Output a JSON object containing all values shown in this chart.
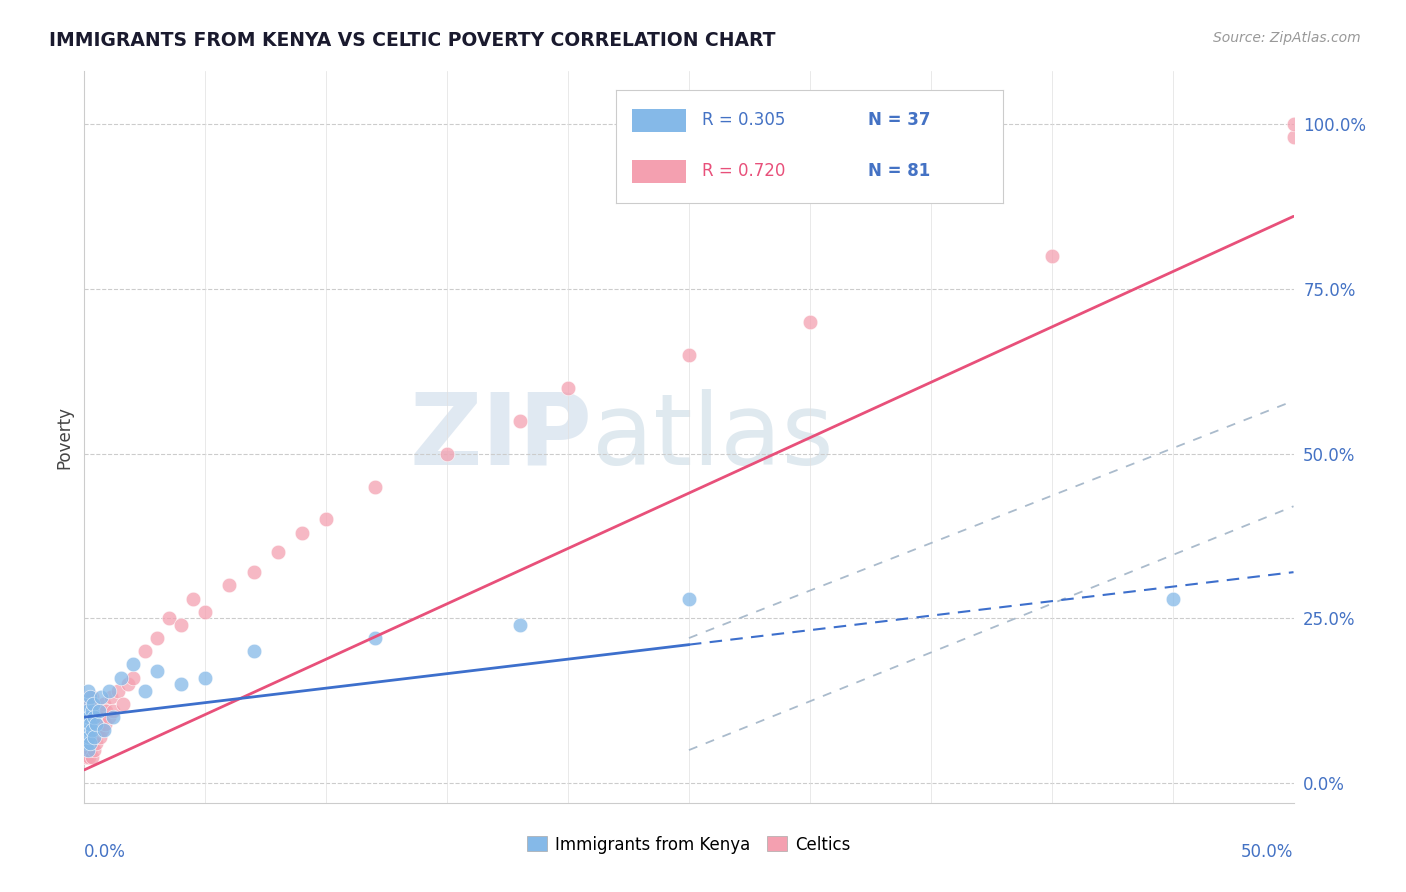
{
  "title": "IMMIGRANTS FROM KENYA VS CELTIC POVERTY CORRELATION CHART",
  "source": "Source: ZipAtlas.com",
  "ylabel": "Poverty",
  "ytick_values": [
    0,
    25,
    50,
    75,
    100
  ],
  "xlim": [
    0,
    50
  ],
  "ylim": [
    -3,
    108
  ],
  "blue_color": "#85b9e8",
  "pink_color": "#f4a0b0",
  "blue_line_color": "#3d6fcc",
  "pink_line_color": "#e8507a",
  "dash_color": "#aabbcc",
  "blue_label": "Immigrants from Kenya",
  "pink_label": "Celtics",
  "R_blue": 0.305,
  "N_blue": 37,
  "R_pink": 0.72,
  "N_pink": 81,
  "watermark_zip": "ZIP",
  "watermark_atlas": "atlas",
  "background_color": "#ffffff",
  "legend_text_color": "#4472c4",
  "blue_scatter_x": [
    0.05,
    0.05,
    0.08,
    0.1,
    0.1,
    0.12,
    0.12,
    0.15,
    0.15,
    0.18,
    0.2,
    0.2,
    0.22,
    0.25,
    0.25,
    0.3,
    0.3,
    0.35,
    0.4,
    0.4,
    0.5,
    0.6,
    0.7,
    0.8,
    1.0,
    1.2,
    1.5,
    2.0,
    2.5,
    3.0,
    4.0,
    5.0,
    7.0,
    12.0,
    18.0,
    25.0,
    45.0
  ],
  "blue_scatter_y": [
    10,
    7,
    9,
    8,
    12,
    6,
    11,
    5,
    14,
    8,
    10,
    7,
    13,
    9,
    6,
    11,
    8,
    12,
    10,
    7,
    9,
    11,
    13,
    8,
    14,
    10,
    16,
    18,
    14,
    17,
    15,
    16,
    20,
    22,
    24,
    28,
    28
  ],
  "pink_scatter_x": [
    0.02,
    0.03,
    0.04,
    0.05,
    0.05,
    0.06,
    0.07,
    0.08,
    0.08,
    0.09,
    0.1,
    0.1,
    0.11,
    0.12,
    0.12,
    0.13,
    0.14,
    0.15,
    0.15,
    0.16,
    0.17,
    0.18,
    0.18,
    0.19,
    0.2,
    0.2,
    0.22,
    0.23,
    0.24,
    0.25,
    0.25,
    0.27,
    0.28,
    0.3,
    0.3,
    0.32,
    0.35,
    0.36,
    0.38,
    0.4,
    0.4,
    0.42,
    0.45,
    0.48,
    0.5,
    0.52,
    0.55,
    0.6,
    0.65,
    0.7,
    0.75,
    0.8,
    0.85,
    0.9,
    1.0,
    1.1,
    1.2,
    1.4,
    1.6,
    1.8,
    2.0,
    2.5,
    3.0,
    3.5,
    4.0,
    4.5,
    5.0,
    6.0,
    7.0,
    8.0,
    9.0,
    10.0,
    12.0,
    15.0,
    18.0,
    20.0,
    25.0,
    30.0,
    40.0,
    50.0,
    50.0
  ],
  "pink_scatter_y": [
    5,
    8,
    6,
    4,
    10,
    7,
    9,
    5,
    12,
    8,
    6,
    11,
    7,
    9,
    4,
    10,
    8,
    5,
    13,
    7,
    9,
    6,
    11,
    8,
    4,
    12,
    7,
    10,
    6,
    9,
    5,
    11,
    8,
    4,
    13,
    7,
    9,
    6,
    10,
    5,
    12,
    8,
    7,
    10,
    6,
    9,
    8,
    11,
    7,
    10,
    8,
    12,
    9,
    11,
    10,
    13,
    11,
    14,
    12,
    15,
    16,
    20,
    22,
    25,
    24,
    28,
    26,
    30,
    32,
    35,
    38,
    40,
    45,
    50,
    55,
    60,
    65,
    70,
    80,
    98,
    100
  ],
  "blue_line_x0": 0,
  "blue_line_y0": 10,
  "blue_line_x1": 50,
  "blue_line_y1": 32,
  "blue_solid_end_x": 25,
  "pink_line_x0": 0,
  "pink_line_y0": 2,
  "pink_line_x1": 50,
  "pink_line_y1": 86,
  "dash_upper_y0": 22,
  "dash_upper_y1": 58,
  "dash_lower_y0": 5,
  "dash_lower_y1": 42
}
